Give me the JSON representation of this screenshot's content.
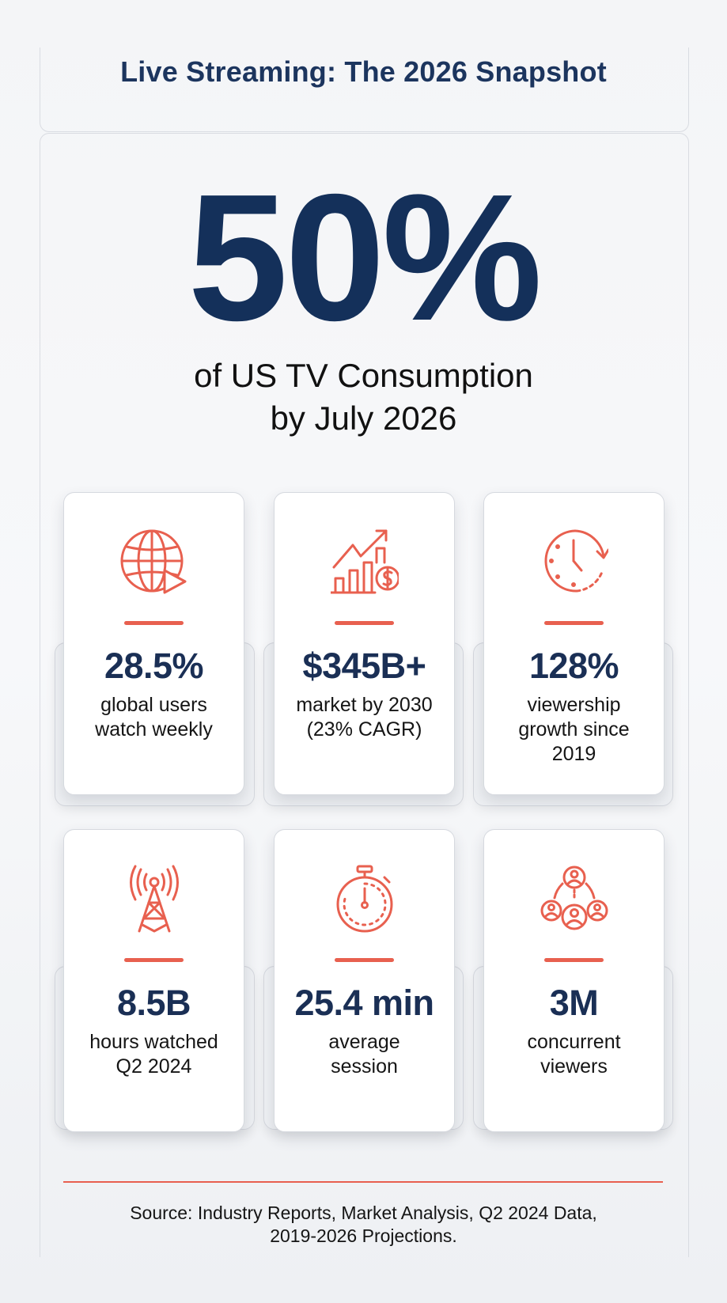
{
  "header": {
    "title": "Live Streaming: The 2026 Snapshot"
  },
  "hero": {
    "value": "50%",
    "subtitle_line1": "of US TV Consumption",
    "subtitle_line2": "by July 2026"
  },
  "accent_color": "#e8604f",
  "primary_color": "#1a2f55",
  "stats": [
    {
      "icon": "globe-play-icon",
      "value": "28.5%",
      "label_lines": [
        "global users",
        "watch weekly"
      ]
    },
    {
      "icon": "growth-chart-dollar-icon",
      "value": "$345B+",
      "label_lines": [
        "market by 2030",
        "(23% CAGR)"
      ]
    },
    {
      "icon": "clock-arrow-icon",
      "value": "128%",
      "label_lines": [
        "viewership",
        "growth since",
        "2019"
      ]
    },
    {
      "icon": "broadcast-tower-icon",
      "value": "8.5B",
      "label_lines": [
        "hours watched",
        "Q2 2024"
      ]
    },
    {
      "icon": "stopwatch-icon",
      "value": "25.4 min",
      "label_lines": [
        "average",
        "session"
      ]
    },
    {
      "icon": "user-network-icon",
      "value": "3M",
      "label_lines": [
        "concurrent",
        "viewers"
      ]
    }
  ],
  "footer": {
    "source_line1": "Source: Industry Reports, Market Analysis, Q2 2024 Data,",
    "source_line2": "2019-2026 Projections."
  }
}
